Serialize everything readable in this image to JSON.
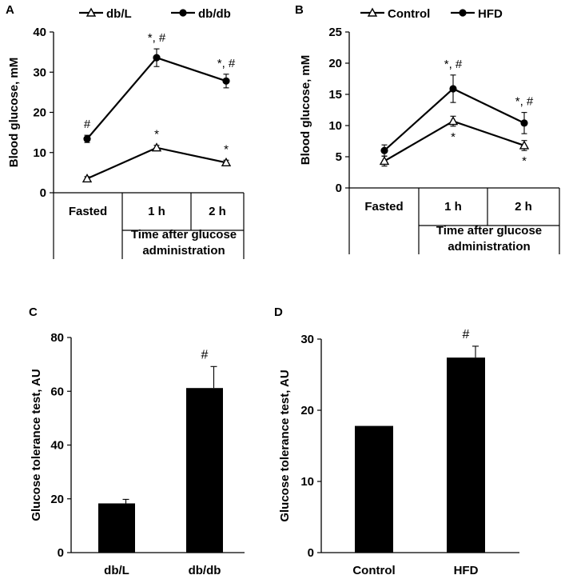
{
  "chart_data": [
    {
      "id": "A",
      "panel_label": "A",
      "type": "line",
      "ylabel": "Blood glucose, mM",
      "ylim": [
        0,
        40
      ],
      "yticks": [
        0,
        10,
        20,
        30,
        40
      ],
      "categories": [
        "Fasted",
        "1 h",
        "2 h"
      ],
      "group_label_lines": [
        "Time after glucose",
        "administration"
      ],
      "series": [
        {
          "name": "db/L",
          "marker": "triangle",
          "values": [
            3.5,
            11.2,
            7.5
          ],
          "errors": [
            0.5,
            0.6,
            0.6
          ],
          "annotations": [
            "",
            "*",
            "*"
          ]
        },
        {
          "name": "db/db",
          "marker": "circle",
          "values": [
            13.4,
            33.6,
            27.8
          ],
          "errors": [
            0.9,
            2.2,
            1.7
          ],
          "annotations": [
            "#",
            "*, #",
            "*, #"
          ]
        }
      ]
    },
    {
      "id": "B",
      "panel_label": "B",
      "type": "line",
      "ylabel": "Blood glucose, mM",
      "ylim": [
        0,
        25
      ],
      "yticks": [
        0,
        5,
        10,
        15,
        20,
        25
      ],
      "categories": [
        "Fasted",
        "1 h",
        "2 h"
      ],
      "group_label_lines": [
        "Time after glucose",
        "administration"
      ],
      "series": [
        {
          "name": "Control",
          "marker": "triangle",
          "values": [
            4.3,
            10.7,
            6.8
          ],
          "errors": [
            0.8,
            0.8,
            0.8
          ],
          "annotations": [
            "",
            "*",
            "*"
          ]
        },
        {
          "name": "HFD",
          "marker": "circle",
          "values": [
            6.0,
            15.9,
            10.4
          ],
          "errors": [
            0.9,
            2.2,
            1.7
          ],
          "annotations": [
            "",
            "*, #",
            "*, #"
          ]
        }
      ]
    },
    {
      "id": "C",
      "panel_label": "C",
      "type": "bar",
      "ylabel": "Glucose tolerance test, AU",
      "ylim": [
        0,
        80
      ],
      "yticks": [
        0,
        20,
        40,
        60,
        80
      ],
      "categories": [
        "db/L",
        "db/db"
      ],
      "values": [
        18.3,
        61.2
      ],
      "errors": [
        1.5,
        8.0
      ],
      "annotations": [
        "",
        "#"
      ]
    },
    {
      "id": "D",
      "panel_label": "D",
      "type": "bar",
      "ylabel": "Glucose tolerance test, AU",
      "ylim": [
        0,
        30
      ],
      "yticks": [
        0,
        10,
        20,
        30
      ],
      "categories": [
        "Control",
        "HFD"
      ],
      "values": [
        17.8,
        27.4
      ],
      "errors": [
        0.0,
        1.6
      ],
      "annotations": [
        "",
        "#"
      ]
    }
  ]
}
